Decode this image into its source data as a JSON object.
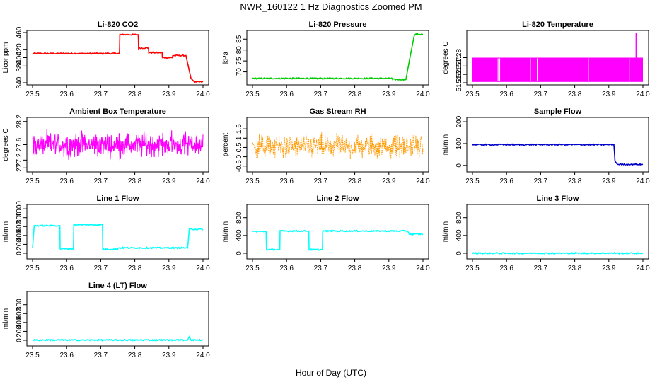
{
  "figure": {
    "title": "NWR_160122  1 Hz Diagnostics Zoomed PM",
    "xlabel": "Hour of Day (UTC)"
  },
  "chart_data": [
    {
      "type": "line",
      "title": "Li-820 CO2",
      "ylabel": "Licor ppm",
      "color": "#ff0000",
      "xlim": [
        23.5,
        24.0
      ],
      "xticks": [
        "23.5",
        "23.6",
        "23.7",
        "23.8",
        "23.9",
        "24.0"
      ],
      "ylim": [
        340,
        460
      ],
      "yticks": [
        340,
        380,
        400,
        420,
        460
      ],
      "x": [
        23.5,
        23.755,
        23.756,
        23.81,
        23.811,
        23.84,
        23.841,
        23.88,
        23.881,
        23.91,
        23.911,
        23.95,
        23.965,
        23.975,
        24.0
      ],
      "y": [
        410,
        410,
        455,
        455,
        423,
        423,
        412,
        412,
        400,
        400,
        405,
        405,
        350,
        342,
        342
      ]
    },
    {
      "type": "line",
      "title": "Li-820 Pressure",
      "ylabel": "kPa",
      "color": "#00cc00",
      "xlim": [
        23.5,
        24.0
      ],
      "xticks": [
        "23.5",
        "23.6",
        "23.7",
        "23.8",
        "23.9",
        "24.0"
      ],
      "ylim": [
        65,
        88
      ],
      "yticks": [
        70,
        75,
        80,
        85
      ],
      "x": [
        23.5,
        23.91,
        23.911,
        23.95,
        23.96,
        23.975,
        23.98,
        24.0
      ],
      "y": [
        67,
        67,
        66.5,
        66.5,
        75,
        87,
        87.2,
        87.2
      ]
    },
    {
      "type": "line",
      "title": "Li-820 Temperature",
      "ylabel": "degrees C",
      "color": "#ff00ff",
      "xlim": [
        23.5,
        24.0
      ],
      "xticks": [
        "23.5",
        "23.6",
        "23.7",
        "23.8",
        "23.9",
        "24.0"
      ],
      "ylim": [
        51.25,
        51.31
      ],
      "yticks": [
        51.25,
        51.26,
        51.27,
        51.28
      ],
      "band": [
        51.251,
        51.28
      ],
      "spike": {
        "x": 23.98,
        "y": 51.31
      }
    },
    {
      "type": "line",
      "title": "Ambient Box Temperature",
      "ylabel": "degrees C",
      "color": "#ff00ff",
      "xlim": [
        23.5,
        24.0
      ],
      "xticks": [
        "23.5",
        "23.6",
        "23.7",
        "23.8",
        "23.9",
        "24.0"
      ],
      "ylim": [
        26.95,
        28.25
      ],
      "yticks": [
        27.0,
        27.2,
        27.6,
        28.2
      ],
      "noise": {
        "mean": 27.6,
        "spread": 0.22
      }
    },
    {
      "type": "scatter",
      "title": "Gas Stream RH",
      "ylabel": "percent",
      "color": "#ff9900",
      "xlim": [
        23.5,
        24.0
      ],
      "xticks": [
        "23.5",
        "23.6",
        "23.7",
        "23.8",
        "23.9",
        "24.0"
      ],
      "ylim": [
        -0.7,
        2.0
      ],
      "yticks": [
        -0.5,
        0.0,
        0.5,
        1.0,
        1.5
      ],
      "noise": {
        "mean": 0.55,
        "spread": 0.45
      }
    },
    {
      "type": "line",
      "title": "Sample Flow",
      "ylabel": "ml/min",
      "color": "#0000cc",
      "xlim": [
        23.5,
        24.0
      ],
      "xticks": [
        "23.5",
        "23.6",
        "23.7",
        "23.8",
        "23.9",
        "24.0"
      ],
      "ylim": [
        -20,
        210
      ],
      "yticks": [
        0,
        100,
        200
      ],
      "x": [
        23.5,
        23.915,
        23.918,
        23.925,
        24.0
      ],
      "y": [
        95,
        95,
        20,
        5,
        5
      ]
    },
    {
      "type": "line",
      "title": "Line 1 Flow",
      "ylabel": "ml/min",
      "color": "#00ffff",
      "xlim": [
        23.5,
        24.0
      ],
      "xticks": [
        "23.5",
        "23.6",
        "23.7",
        "23.8",
        "23.9",
        "24.0"
      ],
      "ylim": [
        -80,
        1050
      ],
      "yticks": [
        0,
        200,
        400,
        600,
        800,
        1000
      ],
      "x": [
        23.5,
        23.505,
        23.58,
        23.581,
        23.62,
        23.621,
        23.705,
        23.706,
        23.75,
        23.751,
        23.955,
        23.96,
        24.0
      ],
      "y": [
        120,
        620,
        620,
        100,
        100,
        640,
        640,
        90,
        90,
        120,
        120,
        540,
        540
      ]
    },
    {
      "type": "line",
      "title": "Line 2 Flow",
      "ylabel": "ml/min",
      "color": "#00ffff",
      "xlim": [
        23.5,
        24.0
      ],
      "xticks": [
        "23.5",
        "23.6",
        "23.7",
        "23.8",
        "23.9",
        "24.0"
      ],
      "ylim": [
        -80,
        1050
      ],
      "yticks": [
        0,
        400,
        800
      ],
      "x": [
        23.5,
        23.54,
        23.541,
        23.58,
        23.581,
        23.665,
        23.666,
        23.705,
        23.706,
        23.955,
        23.96,
        24.0
      ],
      "y": [
        490,
        490,
        80,
        80,
        500,
        500,
        80,
        80,
        500,
        500,
        430,
        430
      ]
    },
    {
      "type": "line",
      "title": "Line 3 Flow",
      "ylabel": "ml/min",
      "color": "#00ffff",
      "xlim": [
        23.5,
        24.0
      ],
      "xticks": [
        "23.5",
        "23.6",
        "23.7",
        "23.8",
        "23.9",
        "24.0"
      ],
      "ylim": [
        -80,
        1050
      ],
      "yticks": [
        0,
        400,
        800
      ],
      "x": [
        23.5,
        24.0
      ],
      "y": [
        0,
        0
      ]
    },
    {
      "type": "line",
      "title": "Line 4 (LT) Flow",
      "ylabel": "ml/min",
      "color": "#00ffff",
      "xlim": [
        23.5,
        24.0
      ],
      "xticks": [
        "23.5",
        "23.6",
        "23.7",
        "23.8",
        "23.9",
        "24.0"
      ],
      "ylim": [
        -80,
        1050
      ],
      "yticks": [
        0,
        200,
        400,
        600,
        800
      ],
      "x": [
        23.5,
        23.955,
        23.96,
        23.965,
        24.0
      ],
      "y": [
        5,
        5,
        80,
        5,
        5
      ]
    }
  ]
}
